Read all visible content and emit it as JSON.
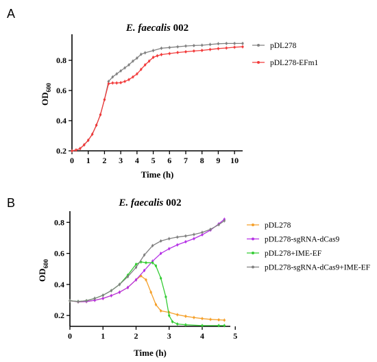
{
  "chart_data": [
    {
      "type": "line",
      "panel": "A",
      "title_italic": "E. faecalis",
      "title_rest": "002",
      "xlabel": "Time (h)",
      "ylabel_main": "OD",
      "ylabel_sub": "600",
      "xlim": [
        0,
        10.5
      ],
      "ylim": [
        0.2,
        0.95
      ],
      "xticks": [
        0,
        1,
        2,
        3,
        4,
        5,
        6,
        7,
        8,
        9,
        10
      ],
      "yticks": [
        0.2,
        0.4,
        0.6,
        0.8
      ],
      "legend_position": "right",
      "series": [
        {
          "name": "pDL278",
          "color": "#808080",
          "points": [
            [
              0,
              0.2
            ],
            [
              0.25,
              0.205
            ],
            [
              0.5,
              0.215
            ],
            [
              0.75,
              0.24
            ],
            [
              1,
              0.27
            ],
            [
              1.25,
              0.31
            ],
            [
              1.5,
              0.37
            ],
            [
              1.75,
              0.44
            ],
            [
              2,
              0.54
            ],
            [
              2.25,
              0.66
            ],
            [
              2.5,
              0.69
            ],
            [
              2.75,
              0.71
            ],
            [
              3,
              0.73
            ],
            [
              3.25,
              0.75
            ],
            [
              3.5,
              0.77
            ],
            [
              3.75,
              0.795
            ],
            [
              4,
              0.815
            ],
            [
              4.25,
              0.84
            ],
            [
              4.5,
              0.85
            ],
            [
              5,
              0.865
            ],
            [
              5.5,
              0.88
            ],
            [
              6,
              0.885
            ],
            [
              6.5,
              0.89
            ],
            [
              7,
              0.895
            ],
            [
              7.5,
              0.898
            ],
            [
              8,
              0.9
            ],
            [
              8.5,
              0.905
            ],
            [
              9,
              0.91
            ],
            [
              9.5,
              0.912
            ],
            [
              10,
              0.912
            ],
            [
              10.5,
              0.912
            ]
          ]
        },
        {
          "name": "pDL278-EFm1",
          "color": "#f23a3a",
          "points": [
            [
              0,
              0.2
            ],
            [
              0.25,
              0.205
            ],
            [
              0.5,
              0.215
            ],
            [
              0.75,
              0.24
            ],
            [
              1,
              0.27
            ],
            [
              1.25,
              0.31
            ],
            [
              1.5,
              0.37
            ],
            [
              1.75,
              0.44
            ],
            [
              2,
              0.54
            ],
            [
              2.25,
              0.645
            ],
            [
              2.5,
              0.65
            ],
            [
              2.75,
              0.65
            ],
            [
              3,
              0.652
            ],
            [
              3.25,
              0.66
            ],
            [
              3.5,
              0.672
            ],
            [
              3.75,
              0.69
            ],
            [
              4,
              0.71
            ],
            [
              4.25,
              0.74
            ],
            [
              4.5,
              0.77
            ],
            [
              4.75,
              0.795
            ],
            [
              5,
              0.82
            ],
            [
              5.25,
              0.83
            ],
            [
              5.5,
              0.838
            ],
            [
              6,
              0.845
            ],
            [
              6.5,
              0.852
            ],
            [
              7,
              0.857
            ],
            [
              7.5,
              0.862
            ],
            [
              8,
              0.866
            ],
            [
              8.5,
              0.872
            ],
            [
              9,
              0.878
            ],
            [
              9.5,
              0.882
            ],
            [
              10,
              0.887
            ],
            [
              10.5,
              0.89
            ]
          ]
        }
      ]
    },
    {
      "type": "line",
      "panel": "B",
      "title_italic": "E. faecalis",
      "title_rest": "002",
      "xlabel": "Time (h)",
      "ylabel_main": "OD",
      "ylabel_sub": "600",
      "xlim": [
        0,
        4.85
      ],
      "ylim": [
        0.13,
        0.85
      ],
      "xticks": [
        0,
        1,
        2,
        3,
        4,
        5
      ],
      "yticks": [
        0.2,
        0.4,
        0.6,
        0.8
      ],
      "legend_position": "right",
      "series": [
        {
          "name": "pDL278",
          "color": "#f5a02a",
          "points": [
            [
              0,
              0.295
            ],
            [
              0.25,
              0.288
            ],
            [
              0.5,
              0.29
            ],
            [
              0.75,
              0.298
            ],
            [
              1,
              0.31
            ],
            [
              1.25,
              0.328
            ],
            [
              1.5,
              0.35
            ],
            [
              1.75,
              0.38
            ],
            [
              2,
              0.43
            ],
            [
              2.15,
              0.455
            ],
            [
              2.3,
              0.43
            ],
            [
              2.45,
              0.35
            ],
            [
              2.6,
              0.27
            ],
            [
              2.75,
              0.23
            ],
            [
              3,
              0.22
            ],
            [
              3.25,
              0.205
            ],
            [
              3.5,
              0.195
            ],
            [
              3.75,
              0.187
            ],
            [
              4,
              0.18
            ],
            [
              4.25,
              0.175
            ],
            [
              4.5,
              0.172
            ],
            [
              4.67,
              0.17
            ]
          ]
        },
        {
          "name": "pDL278-sgRNA-dCas9",
          "color": "#b530e6",
          "points": [
            [
              0,
              0.295
            ],
            [
              0.25,
              0.288
            ],
            [
              0.5,
              0.29
            ],
            [
              0.75,
              0.298
            ],
            [
              1,
              0.31
            ],
            [
              1.25,
              0.328
            ],
            [
              1.5,
              0.35
            ],
            [
              1.75,
              0.38
            ],
            [
              2,
              0.43
            ],
            [
              2.25,
              0.49
            ],
            [
              2.5,
              0.55
            ],
            [
              2.75,
              0.6
            ],
            [
              3,
              0.63
            ],
            [
              3.25,
              0.655
            ],
            [
              3.5,
              0.675
            ],
            [
              3.75,
              0.695
            ],
            [
              4,
              0.72
            ],
            [
              4.25,
              0.75
            ],
            [
              4.5,
              0.79
            ],
            [
              4.67,
              0.82
            ]
          ]
        },
        {
          "name": "pDL278+IME-EF",
          "color": "#33cc33",
          "points": [
            [
              0,
              0.295
            ],
            [
              0.25,
              0.29
            ],
            [
              0.5,
              0.295
            ],
            [
              0.75,
              0.31
            ],
            [
              1,
              0.33
            ],
            [
              1.25,
              0.36
            ],
            [
              1.5,
              0.4
            ],
            [
              1.75,
              0.46
            ],
            [
              2,
              0.53
            ],
            [
              2.15,
              0.545
            ],
            [
              2.3,
              0.54
            ],
            [
              2.5,
              0.54
            ],
            [
              2.6,
              0.52
            ],
            [
              2.75,
              0.44
            ],
            [
              2.9,
              0.32
            ],
            [
              3,
              0.2
            ],
            [
              3.1,
              0.16
            ],
            [
              3.25,
              0.145
            ],
            [
              3.5,
              0.14
            ],
            [
              4,
              0.135
            ],
            [
              4.5,
              0.135
            ],
            [
              4.67,
              0.135
            ]
          ]
        },
        {
          "name": "pDL278-sgRNA-dCas9+IME-EF",
          "color": "#808080",
          "points": [
            [
              0,
              0.295
            ],
            [
              0.25,
              0.29
            ],
            [
              0.5,
              0.295
            ],
            [
              0.75,
              0.31
            ],
            [
              1,
              0.33
            ],
            [
              1.25,
              0.36
            ],
            [
              1.5,
              0.4
            ],
            [
              1.75,
              0.45
            ],
            [
              2,
              0.51
            ],
            [
              2.25,
              0.59
            ],
            [
              2.5,
              0.65
            ],
            [
              2.75,
              0.68
            ],
            [
              3,
              0.695
            ],
            [
              3.25,
              0.705
            ],
            [
              3.5,
              0.712
            ],
            [
              3.75,
              0.722
            ],
            [
              4,
              0.735
            ],
            [
              4.25,
              0.755
            ],
            [
              4.5,
              0.785
            ],
            [
              4.67,
              0.81
            ]
          ]
        }
      ]
    }
  ]
}
